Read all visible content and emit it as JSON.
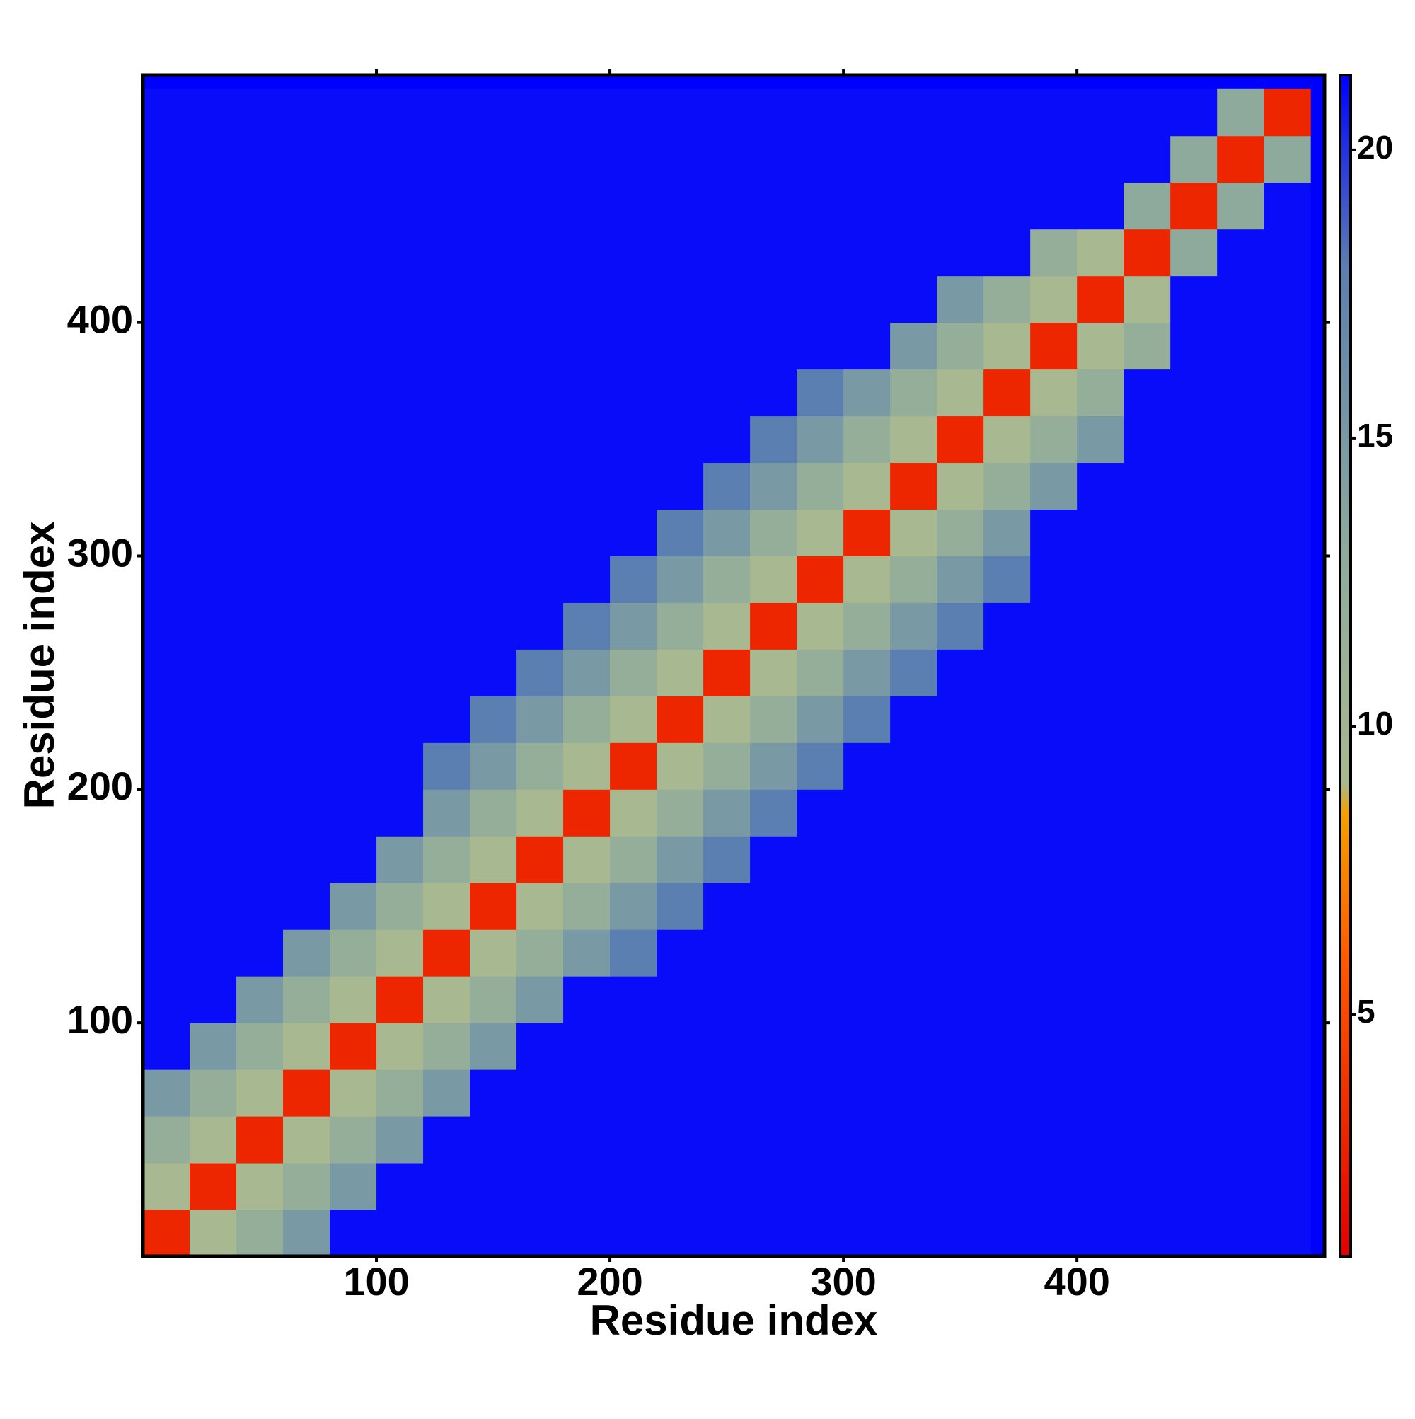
{
  "chart_data": {
    "type": "heatmap",
    "x_label": "Residue index",
    "y_label": "Residue index",
    "xlim": [
      0,
      506
    ],
    "ylim": [
      0,
      506
    ],
    "xticks": [
      100,
      200,
      300,
      400
    ],
    "yticks": [
      100,
      200,
      300,
      400
    ],
    "cell_edges": [
      0,
      20,
      40,
      60,
      80,
      100,
      120,
      140,
      160,
      180,
      200,
      220,
      240,
      260,
      280,
      300,
      320,
      340,
      360,
      380,
      400,
      420,
      440,
      460,
      480,
      500
    ],
    "values": [
      [
        3,
        9,
        12,
        15,
        21,
        21,
        21,
        21,
        21,
        21,
        21,
        21,
        21,
        21,
        21,
        21,
        21,
        21,
        21,
        21,
        21,
        21,
        21,
        21,
        21
      ],
      [
        9,
        3,
        9,
        12,
        15,
        21,
        21,
        21,
        21,
        21,
        21,
        21,
        21,
        21,
        21,
        21,
        21,
        21,
        21,
        21,
        21,
        21,
        21,
        21,
        21
      ],
      [
        12,
        9,
        3,
        9,
        12,
        15,
        21,
        21,
        21,
        21,
        21,
        21,
        21,
        21,
        21,
        21,
        21,
        21,
        21,
        21,
        21,
        21,
        21,
        21,
        21
      ],
      [
        15,
        12,
        9,
        3,
        9,
        12,
        15,
        21,
        21,
        21,
        21,
        21,
        21,
        21,
        21,
        21,
        21,
        21,
        21,
        21,
        21,
        21,
        21,
        21,
        21
      ],
      [
        21,
        15,
        12,
        9,
        3,
        9,
        12,
        15,
        21,
        21,
        21,
        21,
        21,
        21,
        21,
        21,
        21,
        21,
        21,
        21,
        21,
        21,
        21,
        21,
        21
      ],
      [
        21,
        21,
        15,
        12,
        9,
        3,
        9,
        12,
        15,
        21,
        21,
        21,
        21,
        21,
        21,
        21,
        21,
        21,
        21,
        21,
        21,
        21,
        21,
        21,
        21
      ],
      [
        21,
        21,
        21,
        15,
        12,
        9,
        3,
        9,
        12,
        15,
        18,
        21,
        21,
        21,
        21,
        21,
        21,
        21,
        21,
        21,
        21,
        21,
        21,
        21,
        21
      ],
      [
        21,
        21,
        21,
        21,
        15,
        12,
        9,
        3,
        9,
        12,
        15,
        18,
        21,
        21,
        21,
        21,
        21,
        21,
        21,
        21,
        21,
        21,
        21,
        21,
        21
      ],
      [
        21,
        21,
        21,
        21,
        21,
        15,
        12,
        9,
        3,
        9,
        12,
        15,
        18,
        21,
        21,
        21,
        21,
        21,
        21,
        21,
        21,
        21,
        21,
        21,
        21
      ],
      [
        21,
        21,
        21,
        21,
        21,
        21,
        15,
        12,
        9,
        3,
        9,
        12,
        15,
        18,
        21,
        21,
        21,
        21,
        21,
        21,
        21,
        21,
        21,
        21,
        21
      ],
      [
        21,
        21,
        21,
        21,
        21,
        21,
        18,
        15,
        12,
        9,
        3,
        9,
        12,
        15,
        18,
        21,
        21,
        21,
        21,
        21,
        21,
        21,
        21,
        21,
        21
      ],
      [
        21,
        21,
        21,
        21,
        21,
        21,
        21,
        18,
        15,
        12,
        9,
        3,
        9,
        12,
        15,
        18,
        21,
        21,
        21,
        21,
        21,
        21,
        21,
        21,
        21
      ],
      [
        21,
        21,
        21,
        21,
        21,
        21,
        21,
        21,
        18,
        15,
        12,
        9,
        3,
        9,
        12,
        15,
        18,
        21,
        21,
        21,
        21,
        21,
        21,
        21,
        21
      ],
      [
        21,
        21,
        21,
        21,
        21,
        21,
        21,
        21,
        21,
        18,
        15,
        12,
        9,
        3,
        9,
        12,
        15,
        18,
        21,
        21,
        21,
        21,
        21,
        21,
        21
      ],
      [
        21,
        21,
        21,
        21,
        21,
        21,
        21,
        21,
        21,
        21,
        18,
        15,
        12,
        9,
        3,
        9,
        12,
        15,
        18,
        21,
        21,
        21,
        21,
        21,
        21
      ],
      [
        21,
        21,
        21,
        21,
        21,
        21,
        21,
        21,
        21,
        21,
        21,
        18,
        15,
        12,
        9,
        3,
        9,
        12,
        15,
        21,
        21,
        21,
        21,
        21,
        21
      ],
      [
        21,
        21,
        21,
        21,
        21,
        21,
        21,
        21,
        21,
        21,
        21,
        21,
        18,
        15,
        12,
        9,
        3,
        9,
        12,
        15,
        21,
        21,
        21,
        21,
        21
      ],
      [
        21,
        21,
        21,
        21,
        21,
        21,
        21,
        21,
        21,
        21,
        21,
        21,
        21,
        18,
        15,
        12,
        9,
        3,
        9,
        12,
        15,
        21,
        21,
        21,
        21
      ],
      [
        21,
        21,
        21,
        21,
        21,
        21,
        21,
        21,
        21,
        21,
        21,
        21,
        21,
        21,
        18,
        15,
        12,
        9,
        3,
        9,
        12,
        21,
        21,
        21,
        21
      ],
      [
        21,
        21,
        21,
        21,
        21,
        21,
        21,
        21,
        21,
        21,
        21,
        21,
        21,
        21,
        21,
        21,
        15,
        12,
        9,
        3,
        9,
        12,
        21,
        21,
        21
      ],
      [
        21,
        21,
        21,
        21,
        21,
        21,
        21,
        21,
        21,
        21,
        21,
        21,
        21,
        21,
        21,
        21,
        21,
        15,
        12,
        9,
        3,
        9,
        21,
        21,
        21
      ],
      [
        21,
        21,
        21,
        21,
        21,
        21,
        21,
        21,
        21,
        21,
        21,
        21,
        21,
        21,
        21,
        21,
        21,
        21,
        21,
        12,
        9,
        3,
        13,
        21,
        21
      ],
      [
        21,
        21,
        21,
        21,
        21,
        21,
        21,
        21,
        21,
        21,
        21,
        21,
        21,
        21,
        21,
        21,
        21,
        21,
        21,
        21,
        21,
        13,
        3,
        13,
        21
      ],
      [
        21,
        21,
        21,
        21,
        21,
        21,
        21,
        21,
        21,
        21,
        21,
        21,
        21,
        21,
        21,
        21,
        21,
        21,
        21,
        21,
        21,
        21,
        13,
        3,
        13
      ],
      [
        21,
        21,
        21,
        21,
        21,
        21,
        21,
        21,
        21,
        21,
        21,
        21,
        21,
        21,
        21,
        21,
        21,
        21,
        21,
        21,
        21,
        21,
        21,
        13,
        3
      ]
    ],
    "colorscale": [
      [
        0.8,
        "#e00000"
      ],
      [
        6,
        "#ff5a00"
      ],
      [
        8.5,
        "#f4a000"
      ],
      [
        9,
        "#a8b890"
      ],
      [
        13,
        "#8eaa9c"
      ],
      [
        18,
        "#5a7fb0"
      ],
      [
        21.3,
        "#0000ff"
      ]
    ],
    "clim": [
      0.8,
      21.3
    ],
    "cticks": [
      5,
      10,
      15,
      20
    ]
  }
}
